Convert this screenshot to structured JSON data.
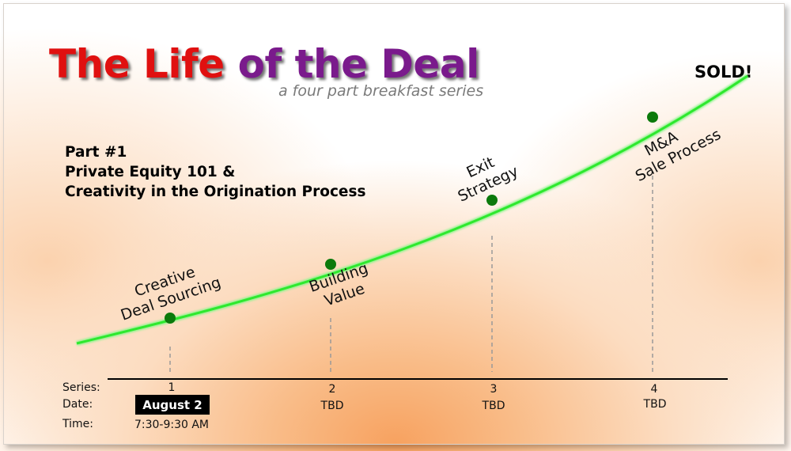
{
  "title": {
    "part1": "The Life ",
    "part2": "of the Deal"
  },
  "subtitle": "a four part breakfast series",
  "end_label": "SOLD!",
  "part_info": {
    "line1": "Part #1",
    "line2": "Private Equity 101 &",
    "line3": "Creativity in the Origination Process"
  },
  "colors": {
    "curve": "#2ee82e",
    "point": "#0b7a0b",
    "title_red": "#e01010",
    "title_purple": "#7a1a8c"
  },
  "row_labels": {
    "series": "Series:",
    "date": "Date:",
    "time": "Time:"
  },
  "stages": [
    {
      "label_line1": "Creative",
      "label_line2": "Deal Sourcing",
      "series": "1",
      "date": "August 2",
      "time": "7:30-9:30 AM"
    },
    {
      "label_line1": "Building",
      "label_line2": "Value",
      "series": "2",
      "date": "TBD",
      "time": ""
    },
    {
      "label_line1": "Exit",
      "label_line2": "Strategy",
      "series": "3",
      "date": "TBD",
      "time": ""
    },
    {
      "label_line1": "M&A",
      "label_line2": "Sale Process",
      "series": "4",
      "date": "TBD",
      "time": ""
    }
  ]
}
